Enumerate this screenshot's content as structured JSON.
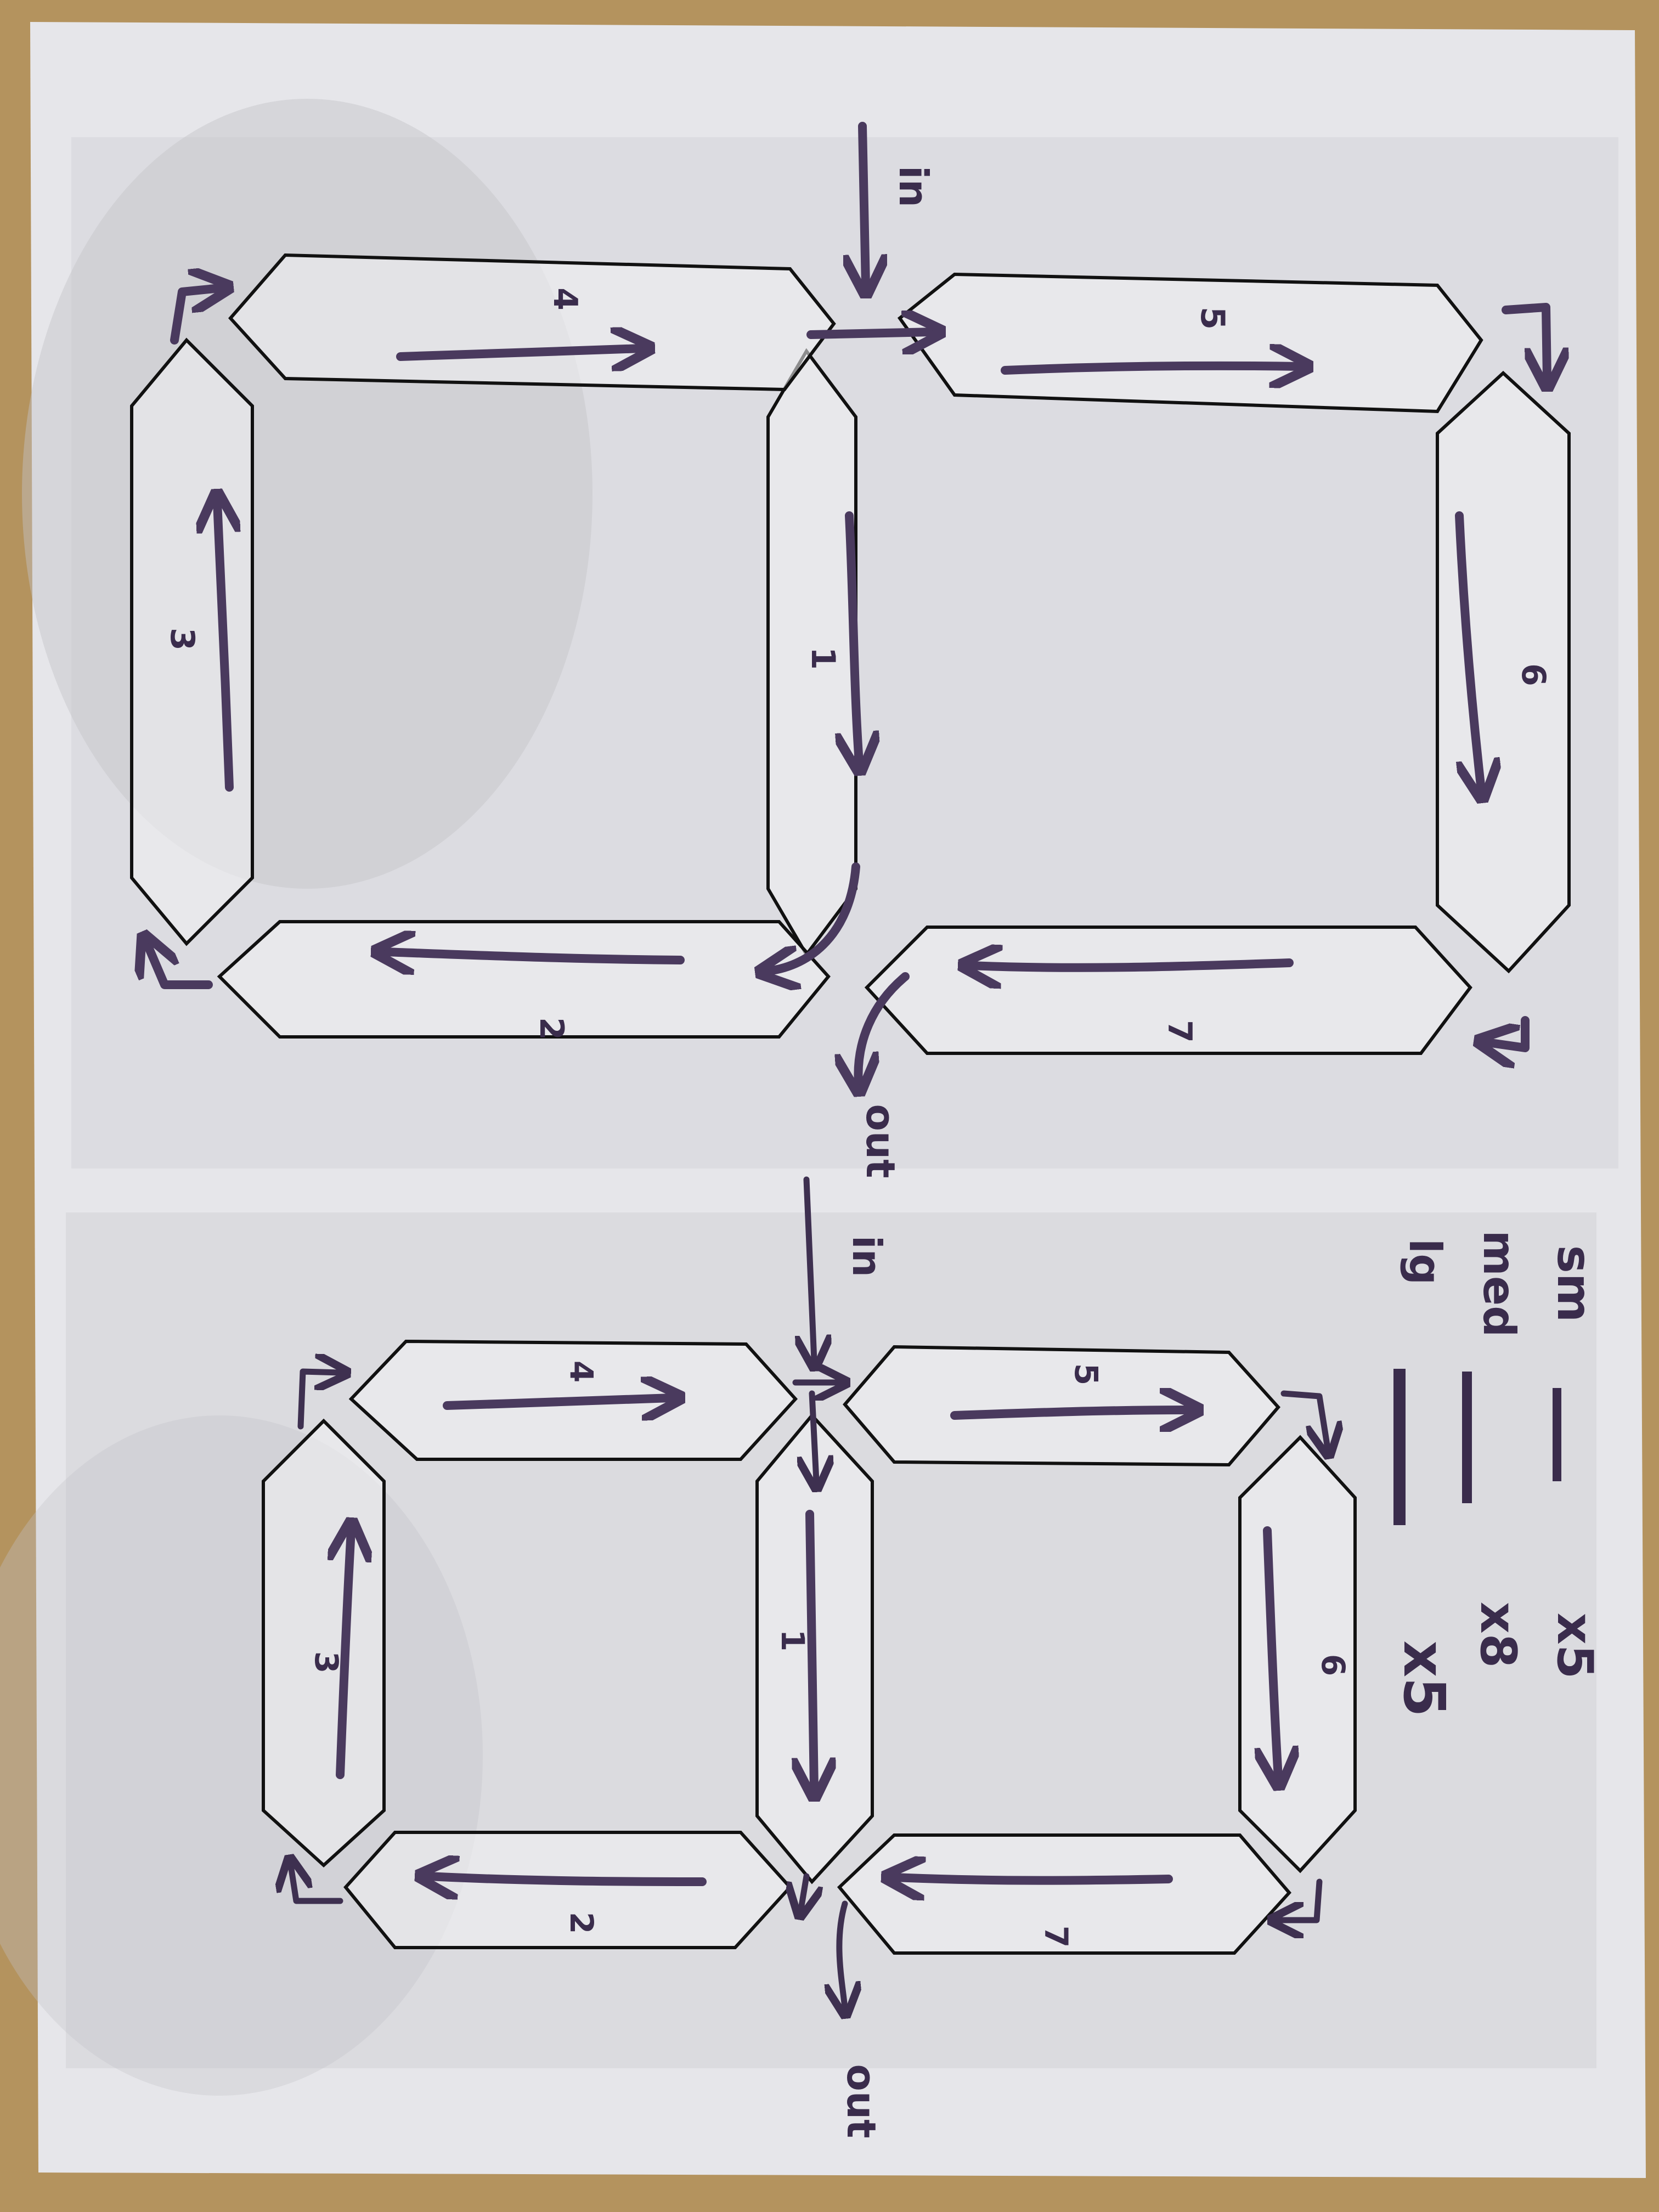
{
  "colors": {
    "paper": "#e6e6ea",
    "ink": "#4a3a5e",
    "outline": "#111111",
    "desk": "#b4935e"
  },
  "diagram_top": {
    "entry_label": "in",
    "exit_label": "out",
    "segments": [
      "1",
      "2",
      "3",
      "4",
      "5",
      "6",
      "7"
    ]
  },
  "diagram_bottom": {
    "entry_label": "in",
    "exit_label": "out",
    "segments": [
      "1",
      "2",
      "3",
      "4",
      "5",
      "6",
      "7"
    ]
  },
  "legend": {
    "rows": [
      {
        "size": "sm",
        "multiplier": "x5"
      },
      {
        "size": "med",
        "multiplier": "x8"
      },
      {
        "size": "lg",
        "multiplier": "x5"
      }
    ]
  }
}
